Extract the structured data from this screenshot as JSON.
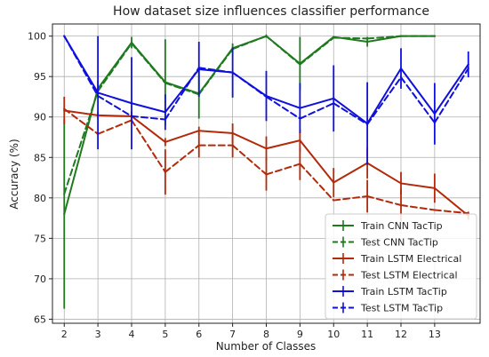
{
  "chart_data": {
    "type": "line",
    "title": "How dataset size influences classifier performance",
    "xlabel": "Number of Classes",
    "ylabel": "Accuracy (%)",
    "x": [
      2,
      3,
      4,
      5,
      6,
      7,
      8,
      9,
      10,
      11,
      12,
      13,
      14
    ],
    "x_ticks": [
      2,
      3,
      4,
      5,
      6,
      7,
      8,
      9,
      10,
      11,
      12,
      13
    ],
    "y_ticks": [
      65,
      70,
      75,
      80,
      85,
      90,
      95,
      100
    ],
    "xlim": [
      1.65,
      14.35
    ],
    "ylim": [
      64.5,
      101.5
    ],
    "grid": true,
    "legend_position": "bottom-right",
    "series": [
      {
        "name": "Train CNN TacTip",
        "color": "#1f7a1f",
        "dash": "solid",
        "x": [
          2,
          3,
          4,
          5,
          6,
          7,
          8,
          9,
          10,
          11,
          12,
          13
        ],
        "values": [
          78,
          93.5,
          99.2,
          94.3,
          92.9,
          98.5,
          100,
          96.6,
          99.9,
          99.3,
          100,
          100
        ],
        "err": [
          11.7,
          1.0,
          0.7,
          5.3,
          3.1,
          0.6,
          0.2,
          3.3,
          0.1,
          0.6,
          0.1,
          0.1
        ]
      },
      {
        "name": "Test CNN TacTip",
        "color": "#1f7a1f",
        "dash": "dashed",
        "x": [
          2,
          3,
          4,
          5,
          6,
          7,
          8,
          9,
          10,
          11,
          12,
          13
        ],
        "values": [
          80.5,
          93.2,
          99.1,
          94.2,
          92.8,
          98.4,
          100,
          96.5,
          99.8,
          99.7,
          100,
          100
        ],
        "err": [
          0,
          0,
          0,
          0,
          0,
          0,
          0,
          0,
          0,
          0,
          0,
          0
        ]
      },
      {
        "name": "Train LSTM Electrical",
        "color": "#b22a0a",
        "dash": "solid",
        "x": [
          2,
          3,
          4,
          5,
          6,
          7,
          8,
          9,
          10,
          11,
          12,
          13,
          14
        ],
        "values": [
          90.8,
          90.2,
          90.1,
          86.9,
          88.3,
          88.0,
          86.1,
          87.1,
          81.9,
          84.3,
          81.8,
          81.2,
          77.8
        ],
        "err": [
          1.7,
          0.5,
          0.6,
          0.5,
          0.5,
          1.2,
          1.5,
          1.4,
          1.8,
          1.9,
          1.4,
          1.8,
          0.5
        ]
      },
      {
        "name": "Test LSTM Electrical",
        "color": "#b22a0a",
        "dash": "dashed",
        "x": [
          2,
          3,
          4,
          5,
          6,
          7,
          8,
          9,
          10,
          11,
          12,
          13,
          14
        ],
        "values": [
          91.0,
          87.9,
          89.6,
          83.2,
          86.5,
          86.5,
          82.9,
          84.2,
          79.7,
          80.2,
          79.1,
          78.5,
          78.1
        ],
        "err": [
          0,
          0,
          0,
          2.8,
          1.5,
          1.5,
          2.0,
          2.0,
          0,
          2.0,
          2.0,
          0,
          0
        ]
      },
      {
        "name": "Train LSTM TacTip",
        "color": "#1010dd",
        "dash": "solid",
        "x": [
          2,
          3,
          4,
          5,
          6,
          7,
          8,
          9,
          10,
          11,
          12,
          13,
          14
        ],
        "values": [
          100,
          93.0,
          91.7,
          90.6,
          95.9,
          95.5,
          92.6,
          91.1,
          92.3,
          89.2,
          96.0,
          90.4,
          96.5
        ],
        "err": [
          0.1,
          7.0,
          5.7,
          2.2,
          3.4,
          3.1,
          3.1,
          3.1,
          4.1,
          5.1,
          2.5,
          3.8,
          1.6
        ]
      },
      {
        "name": "Test LSTM TacTip",
        "color": "#1010dd",
        "dash": "dashed",
        "x": [
          2,
          3,
          4,
          5,
          6,
          7,
          8,
          9,
          10,
          11,
          12,
          13,
          14
        ],
        "values": [
          100,
          92.6,
          90.1,
          89.7,
          96.1,
          95.5,
          92.5,
          89.8,
          91.7,
          89.1,
          94.9,
          89.3,
          96.0
        ],
        "err": [
          0,
          0,
          0,
          0,
          0,
          0,
          0,
          0,
          0,
          0,
          0,
          0,
          0
        ]
      }
    ]
  }
}
